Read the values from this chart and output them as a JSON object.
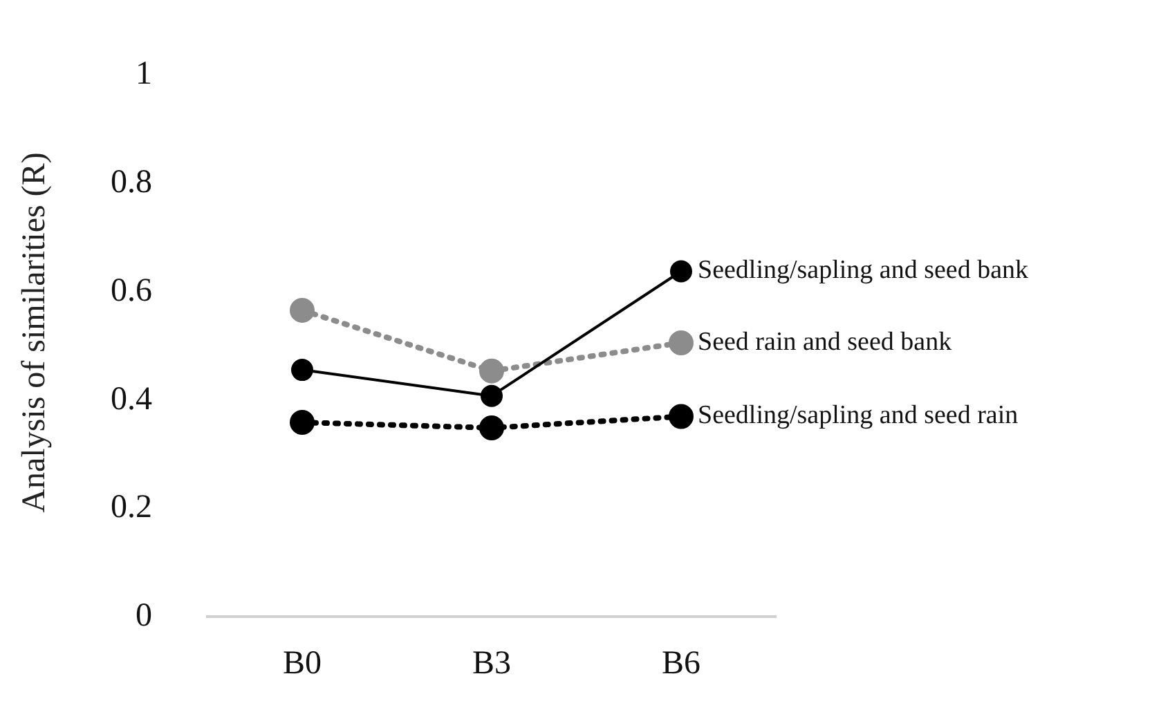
{
  "chart_data": {
    "type": "line",
    "ylabel": "Analysis of similarities (R)",
    "categories": [
      "B0",
      "B3",
      "B6"
    ],
    "series": [
      {
        "name": "Seedling/sapling and seed bank",
        "color": "#000000",
        "line_style": "solid",
        "values": [
          0.456,
          0.408,
          0.638
        ]
      },
      {
        "name": "Seed rain and seed bank",
        "color": "#8c8c8c",
        "line_style": "dotted",
        "values": [
          0.566,
          0.454,
          0.506
        ]
      },
      {
        "name": "Seedling/sapling and seed rain",
        "color": "#000000",
        "line_style": "dotted",
        "values": [
          0.359,
          0.349,
          0.37
        ]
      }
    ],
    "ylim": [
      0,
      1
    ],
    "yticks": [
      0,
      0.2,
      0.4,
      0.6,
      0.8,
      1
    ],
    "grid": false,
    "legend": false,
    "marker": "circle"
  }
}
